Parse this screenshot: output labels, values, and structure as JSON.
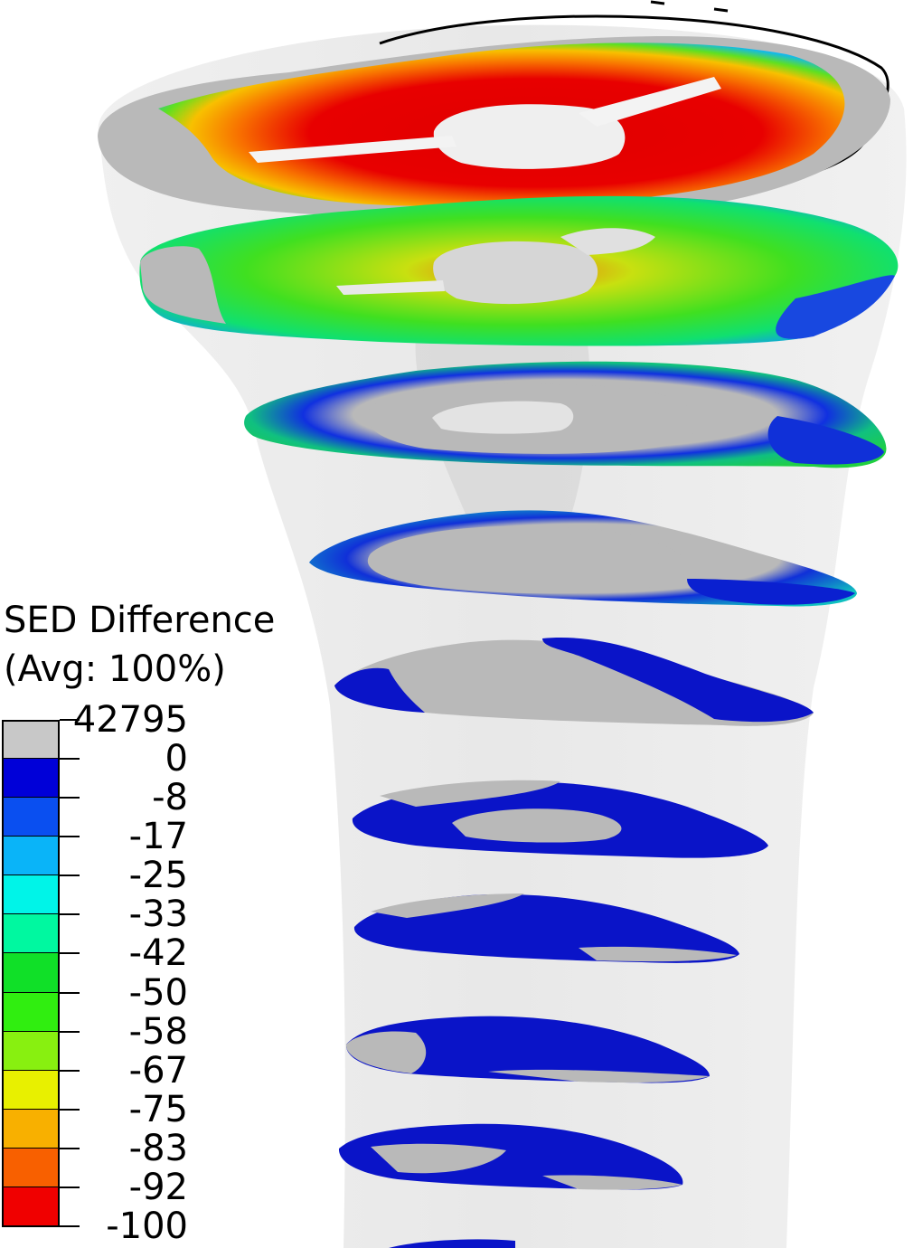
{
  "legend": {
    "title_line1": "SED Difference",
    "title_line2": "(Avg: 100%)",
    "labels": [
      "42795",
      "0",
      "-8",
      "-17",
      "-25",
      "-33",
      "-42",
      "-50",
      "-58",
      "-67",
      "-75",
      "-83",
      "-92",
      "-100"
    ],
    "colors": [
      "#c8c8c8",
      "#0000d8",
      "#0a4ff0",
      "#0ab4f8",
      "#00f4e8",
      "#00f8a0",
      "#10e028",
      "#30ee10",
      "#88f010",
      "#e8f000",
      "#f8b000",
      "#f86000",
      "#f00000"
    ]
  },
  "colors": {
    "gray": "#b9b9b9",
    "bone": "#efefef",
    "shaft": "#e4e4e4"
  }
}
